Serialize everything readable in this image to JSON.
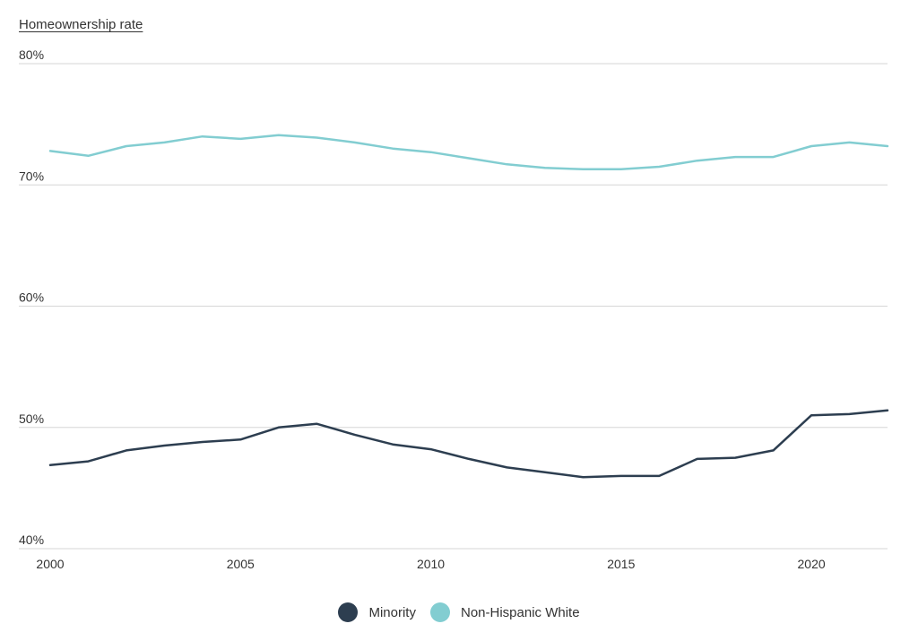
{
  "chart_data": {
    "type": "line",
    "title": "Homeownership rate",
    "xlabel": "",
    "ylabel": "Homeownership rate",
    "x": [
      2000,
      2001,
      2002,
      2003,
      2004,
      2005,
      2006,
      2007,
      2008,
      2009,
      2010,
      2011,
      2012,
      2013,
      2014,
      2015,
      2016,
      2017,
      2018,
      2019,
      2020,
      2021,
      2022
    ],
    "xlim": [
      2000,
      2022
    ],
    "ylim": [
      40,
      80
    ],
    "yticks": [
      40,
      50,
      60,
      70,
      80
    ],
    "ytick_labels": [
      "40%",
      "50%",
      "60%",
      "70%",
      "80%"
    ],
    "xticks": [
      2000,
      2005,
      2010,
      2015,
      2020
    ],
    "xtick_labels": [
      "2000",
      "2005",
      "2010",
      "2015",
      "2020"
    ],
    "grid": true,
    "legend_position": "bottom-center",
    "series": [
      {
        "name": "Minority",
        "color": "#2d3e50",
        "values": [
          46.9,
          47.2,
          48.1,
          48.5,
          48.8,
          49.0,
          50.0,
          50.3,
          49.4,
          48.6,
          48.2,
          47.4,
          46.7,
          46.3,
          45.9,
          46.0,
          46.0,
          47.4,
          47.5,
          48.1,
          51.0,
          51.1,
          51.4
        ]
      },
      {
        "name": "Non-Hispanic White",
        "color": "#82cdd1",
        "values": [
          72.8,
          72.4,
          73.2,
          73.5,
          74.0,
          73.8,
          74.1,
          73.9,
          73.5,
          73.0,
          72.7,
          72.2,
          71.7,
          71.4,
          71.3,
          71.3,
          71.5,
          72.0,
          72.3,
          72.3,
          73.2,
          73.5,
          73.2
        ]
      }
    ]
  }
}
